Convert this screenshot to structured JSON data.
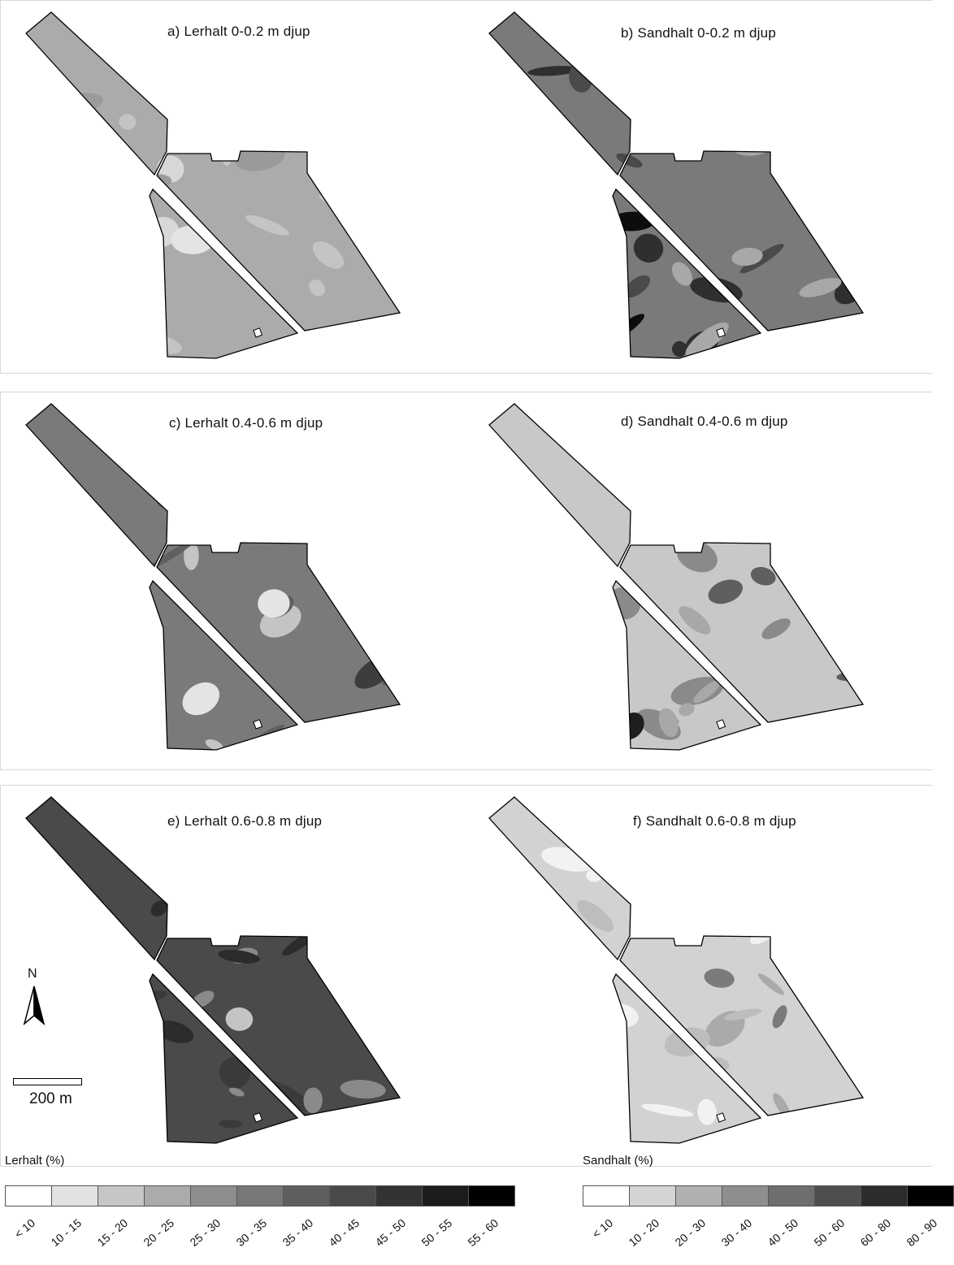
{
  "maps": [
    {
      "id": "a",
      "title": "a) Lerhalt 0-0.2 m djup",
      "scale": "clay",
      "base": "#ababab",
      "patches": [
        [
          "#d8d8d8",
          0.18
        ],
        [
          "#c4c4c4",
          0.22
        ],
        [
          "#9a9a9a",
          0.1
        ],
        [
          "#e4e4e4",
          0.05
        ]
      ]
    },
    {
      "id": "b",
      "title": "b) Sandhalt 0-0.2 m djup",
      "scale": "sand",
      "base": "#7a7a7a",
      "patches": [
        [
          "#2f2f2f",
          0.18
        ],
        [
          "#4a4a4a",
          0.22
        ],
        [
          "#a8a8a8",
          0.18
        ],
        [
          "#0d0d0d",
          0.05
        ]
      ]
    },
    {
      "id": "c",
      "title": "c) Lerhalt 0.4-0.6 m djup",
      "scale": "clay",
      "base": "#7a7a7a",
      "patches": [
        [
          "#3d3d3d",
          0.22
        ],
        [
          "#c4c4c4",
          0.14
        ],
        [
          "#5f5f5f",
          0.22
        ],
        [
          "#e4e4e4",
          0.05
        ]
      ]
    },
    {
      "id": "d",
      "title": "d) Sandhalt 0.4-0.6 m djup",
      "scale": "sand",
      "base": "#c8c8c8",
      "patches": [
        [
          "#8a8a8a",
          0.22
        ],
        [
          "#5f5f5f",
          0.14
        ],
        [
          "#1e1e1e",
          0.07
        ],
        [
          "#a8a8a8",
          0.16
        ]
      ]
    },
    {
      "id": "e",
      "title": "e) Lerhalt 0.6-0.8 m djup",
      "scale": "clay",
      "base": "#4a4a4a",
      "patches": [
        [
          "#3a3a3a",
          0.22
        ],
        [
          "#8a8a8a",
          0.15
        ],
        [
          "#c4c4c4",
          0.08
        ],
        [
          "#2c2c2c",
          0.12
        ]
      ]
    },
    {
      "id": "f",
      "title": "f) Sandhalt 0.6-0.8 m djup",
      "scale": "sand",
      "base": "#d2d2d2",
      "patches": [
        [
          "#f2f2f2",
          0.2
        ],
        [
          "#aaaaaa",
          0.16
        ],
        [
          "#7a7a7a",
          0.07
        ],
        [
          "#bdbdbd",
          0.14
        ]
      ]
    }
  ],
  "north_label": "N",
  "scale_label": "200 m",
  "legend_clay": {
    "title": "Lerhalt (%)",
    "classes": [
      "< 10",
      "10 - 15",
      "15 - 20",
      "20 - 25",
      "25 - 30",
      "30 - 35",
      "35 - 40",
      "40 - 45",
      "45 - 50",
      "50 - 55",
      "55 - 60"
    ],
    "colors": [
      "#ffffff",
      "#e2e2e2",
      "#c6c6c6",
      "#ababab",
      "#8e8e8e",
      "#787878",
      "#5f5f5f",
      "#4a4a4a",
      "#333333",
      "#1c1c1c",
      "#000000"
    ]
  },
  "legend_sand": {
    "title": "Sandhalt (%)",
    "classes": [
      "< 10",
      "10 - 20",
      "20 - 30",
      "30 - 40",
      "40 - 50",
      "50 - 60",
      "60 - 80",
      "80 - 90"
    ],
    "colors": [
      "#ffffff",
      "#d4d4d4",
      "#b0b0b0",
      "#8e8e8e",
      "#6e6e6e",
      "#4e4e4e",
      "#2c2c2c",
      "#000000"
    ]
  }
}
